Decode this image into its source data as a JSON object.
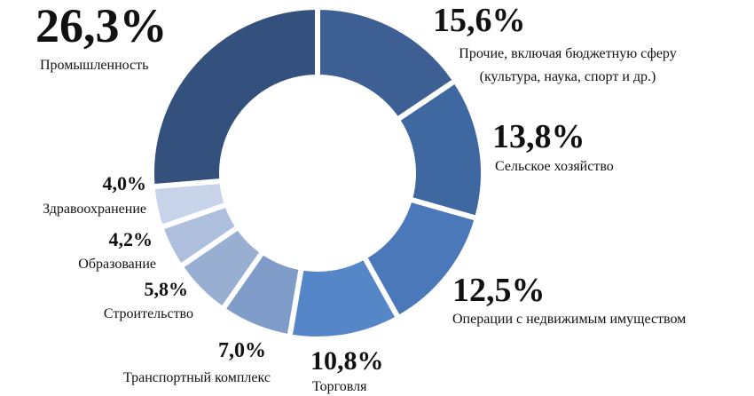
{
  "chart_data": {
    "type": "donut",
    "categories": [
      "Прочие, включая бюджетную сферу (культура, наука, спорт и др.)",
      "Сельское хозяйство",
      "Операции с недвижимым имуществом",
      "Торговля",
      "Транспортный комплекс",
      "Строительство",
      "Образование",
      "Здравоохранение",
      "Промышленность"
    ],
    "values": [
      15.6,
      13.8,
      12.5,
      10.8,
      7.0,
      5.8,
      4.2,
      4.0,
      26.3
    ],
    "value_labels": [
      "15,6%",
      "13,8%",
      "12,5%",
      "10,8%",
      "7,0%",
      "5,8%",
      "4,2%",
      "4,0%",
      "26,3%"
    ],
    "colors": [
      "#3d5f93",
      "#3f67a0",
      "#4a78b8",
      "#5586c8",
      "#7f9cc8",
      "#98afd2",
      "#adbfdc",
      "#c7d3e8",
      "#34507c"
    ]
  }
}
